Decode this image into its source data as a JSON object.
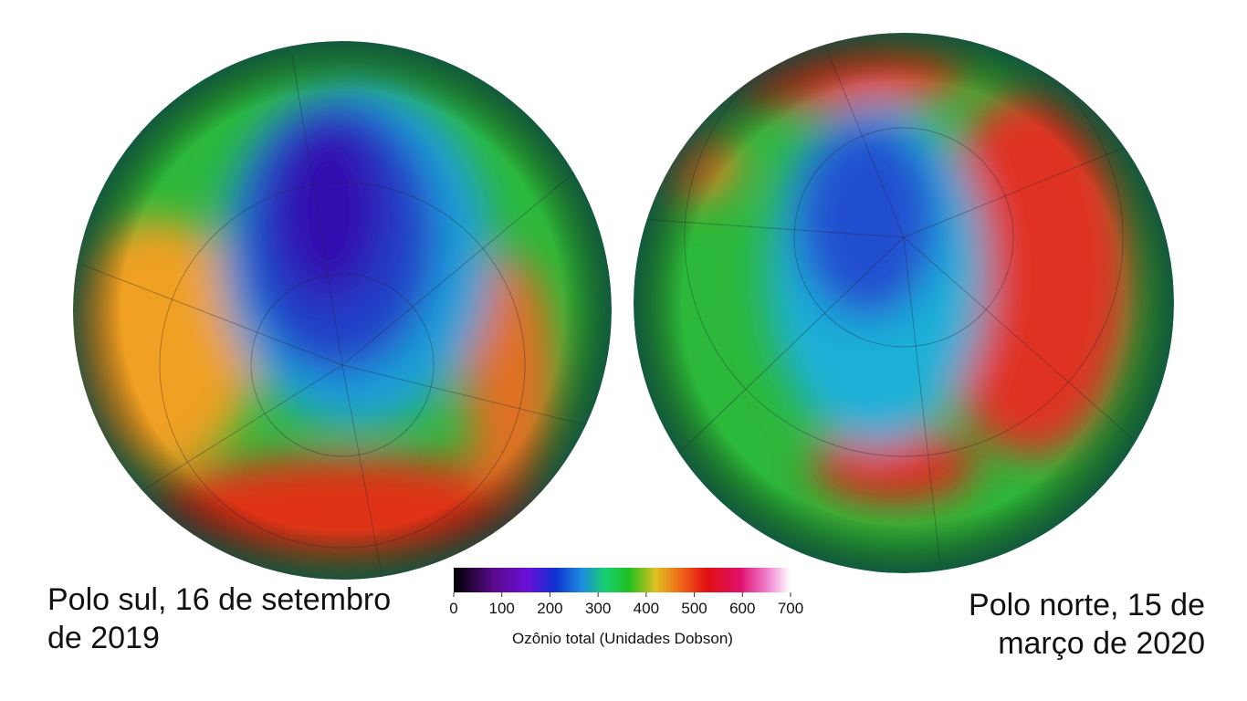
{
  "panels": [
    {
      "caption": "Polo sul, 16 de setembro de 2019"
    },
    {
      "caption": "Polo norte, 15 de março de 2020"
    }
  ],
  "colorbar": {
    "label": "Ozônio total (Unidades Dobson)",
    "lim": [
      0,
      700
    ],
    "ticks": [
      0,
      100,
      200,
      300,
      400,
      500,
      600,
      700
    ]
  }
}
